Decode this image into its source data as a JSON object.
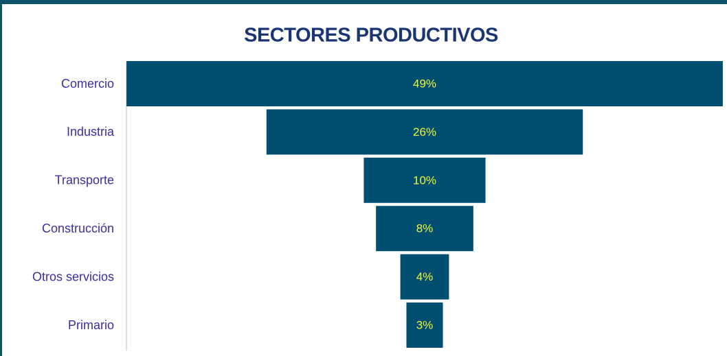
{
  "chart_data": {
    "type": "funnel",
    "title": "SECTORES PRODUCTIVOS",
    "categories": [
      "Comercio",
      "Industria",
      "Transporte",
      "Construcción",
      "Otros servicios",
      "Primario"
    ],
    "values": [
      49,
      26,
      10,
      8,
      4,
      3
    ],
    "value_labels": [
      "49%",
      "26%",
      "10%",
      "8%",
      "4%",
      "3%"
    ],
    "color": "#004f71"
  }
}
